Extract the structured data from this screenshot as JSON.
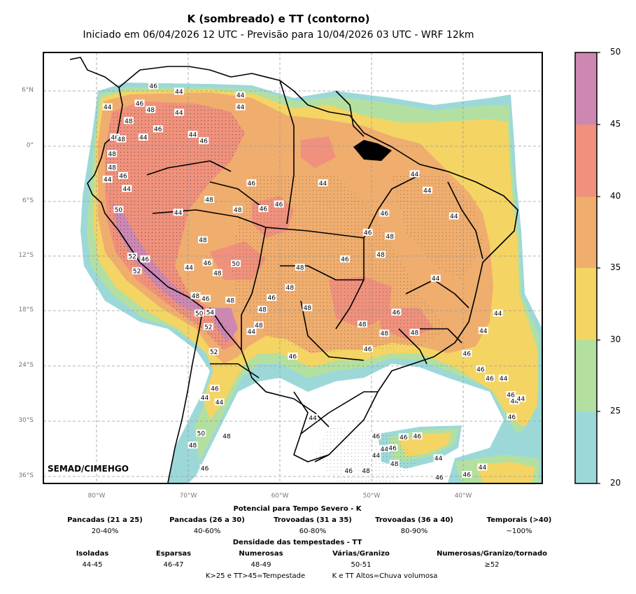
{
  "title": "K (sombreado) e TT (contorno)",
  "subtitle": "Iniciado em 06/04/2026 12 UTC - Previsão para 10/04/2026 03 UTC - WRF 12km",
  "credit": "SEMAD/CIMEHGO",
  "lat_labels": [
    "6°N",
    "0°",
    "6°S",
    "12°S",
    "18°S",
    "24°S",
    "30°S",
    "36°S"
  ],
  "lon_labels": [
    "80°W",
    "70°W",
    "60°W",
    "50°W",
    "40°W"
  ],
  "colorbar": {
    "ticks": [
      "50",
      "45",
      "40",
      "35",
      "30",
      "25",
      "20"
    ],
    "colors": [
      "#cd88b2",
      "#ef917c",
      "#efad6e",
      "#f4d463",
      "#b3e0a0",
      "#9dd8d8"
    ]
  },
  "legend": {
    "k_title": "Potencial para Tempo Severo - K",
    "k_items": [
      {
        "label": "Pancadas (21 a 25)",
        "value": "20-40%"
      },
      {
        "label": "Pancadas (26 a 30)",
        "value": "40-60%"
      },
      {
        "label": "Trovoadas (31 a 35)",
        "value": "60-80%"
      },
      {
        "label": "Trovoadas (36 a 40)",
        "value": "80-90%"
      },
      {
        "label": "Temporais (>40)",
        "value": "~100%"
      }
    ],
    "tt_title": "Densidade das tempestades - TT",
    "tt_items": [
      {
        "label": "Isoladas",
        "value": "44-45"
      },
      {
        "label": "Esparsas",
        "value": "46-47"
      },
      {
        "label": "Numerosas",
        "value": "48-49"
      },
      {
        "label": "Várias/Granizo",
        "value": "50-51"
      },
      {
        "label": "Numerosas/Granizo/tornado",
        "value": "≥52"
      }
    ],
    "footer_left": "K>25 e TT>45=Tempestade",
    "footer_right": "K e TT Altos=Chuva volumosa"
  },
  "contour_labels": [
    {
      "text": "46",
      "lon": -73.8,
      "lat": 6.6
    },
    {
      "text": "44",
      "lon": -71.0,
      "lat": 6.0
    },
    {
      "text": "44",
      "lon": -64.3,
      "lat": 5.6
    },
    {
      "text": "44",
      "lon": -78.8,
      "lat": 4.3
    },
    {
      "text": "46",
      "lon": -75.3,
      "lat": 4.7
    },
    {
      "text": "48",
      "lon": -74.1,
      "lat": 4.0
    },
    {
      "text": "44",
      "lon": -71.0,
      "lat": 3.7
    },
    {
      "text": "44",
      "lon": -64.3,
      "lat": 4.3
    },
    {
      "text": "48",
      "lon": -76.5,
      "lat": 2.8
    },
    {
      "text": "46",
      "lon": -73.3,
      "lat": 1.9
    },
    {
      "text": "46",
      "lon": -78.0,
      "lat": 1.0
    },
    {
      "text": "48",
      "lon": -77.3,
      "lat": 0.8
    },
    {
      "text": "44",
      "lon": -74.9,
      "lat": 1.0
    },
    {
      "text": "44",
      "lon": -69.5,
      "lat": 1.3
    },
    {
      "text": "46",
      "lon": -68.3,
      "lat": 0.6
    },
    {
      "text": "48",
      "lon": -78.3,
      "lat": -0.8
    },
    {
      "text": "48",
      "lon": -78.3,
      "lat": -2.3
    },
    {
      "text": "46",
      "lon": -77.1,
      "lat": -3.2
    },
    {
      "text": "44",
      "lon": -78.8,
      "lat": -3.6
    },
    {
      "text": "44",
      "lon": -76.7,
      "lat": -4.6
    },
    {
      "text": "46",
      "lon": -63.1,
      "lat": -4.0
    },
    {
      "text": "44",
      "lon": -55.3,
      "lat": -4.0
    },
    {
      "text": "44",
      "lon": -45.3,
      "lat": -3.0
    },
    {
      "text": "44",
      "lon": -43.9,
      "lat": -4.8
    },
    {
      "text": "48",
      "lon": -67.7,
      "lat": -5.8
    },
    {
      "text": "46",
      "lon": -60.1,
      "lat": -6.3
    },
    {
      "text": "50",
      "lon": -77.6,
      "lat": -6.9
    },
    {
      "text": "48",
      "lon": -64.6,
      "lat": -6.9
    },
    {
      "text": "46",
      "lon": -61.8,
      "lat": -6.8
    },
    {
      "text": "44",
      "lon": -71.1,
      "lat": -7.2
    },
    {
      "text": "46",
      "lon": -48.6,
      "lat": -7.3
    },
    {
      "text": "44",
      "lon": -41.0,
      "lat": -7.6
    },
    {
      "text": "46",
      "lon": -50.4,
      "lat": -9.4
    },
    {
      "text": "48",
      "lon": -48.0,
      "lat": -9.8
    },
    {
      "text": "48",
      "lon": -68.4,
      "lat": -10.2
    },
    {
      "text": "52",
      "lon": -76.1,
      "lat": -12.0
    },
    {
      "text": "46",
      "lon": -74.7,
      "lat": -12.3
    },
    {
      "text": "46",
      "lon": -67.9,
      "lat": -12.7
    },
    {
      "text": "50",
      "lon": -64.8,
      "lat": -12.8
    },
    {
      "text": "46",
      "lon": -52.9,
      "lat": -12.3
    },
    {
      "text": "48",
      "lon": -49.0,
      "lat": -11.8
    },
    {
      "text": "52",
      "lon": -75.6,
      "lat": -13.6
    },
    {
      "text": "44",
      "lon": -69.9,
      "lat": -13.2
    },
    {
      "text": "48",
      "lon": -66.8,
      "lat": -13.8
    },
    {
      "text": "48",
      "lon": -57.8,
      "lat": -13.2
    },
    {
      "text": "44",
      "lon": -43.0,
      "lat": -14.4
    },
    {
      "text": "48",
      "lon": -58.9,
      "lat": -15.4
    },
    {
      "text": "48",
      "lon": -69.2,
      "lat": -16.3
    },
    {
      "text": "46",
      "lon": -68.1,
      "lat": -16.6
    },
    {
      "text": "48",
      "lon": -65.4,
      "lat": -16.8
    },
    {
      "text": "46",
      "lon": -60.9,
      "lat": -16.5
    },
    {
      "text": "48",
      "lon": -57.0,
      "lat": -17.6
    },
    {
      "text": "48",
      "lon": -61.9,
      "lat": -17.8
    },
    {
      "text": "46",
      "lon": -47.3,
      "lat": -18.1
    },
    {
      "text": "44",
      "lon": -36.2,
      "lat": -18.2
    },
    {
      "text": "50",
      "lon": -68.8,
      "lat": -18.2
    },
    {
      "text": "54",
      "lon": -67.6,
      "lat": -18.1
    },
    {
      "text": "52",
      "lon": -67.8,
      "lat": -19.7
    },
    {
      "text": "48",
      "lon": -51.0,
      "lat": -19.4
    },
    {
      "text": "48",
      "lon": -62.3,
      "lat": -19.5
    },
    {
      "text": "44",
      "lon": -63.1,
      "lat": -20.2
    },
    {
      "text": "48",
      "lon": -48.6,
      "lat": -20.4
    },
    {
      "text": "48",
      "lon": -45.3,
      "lat": -20.3
    },
    {
      "text": "44",
      "lon": -37.8,
      "lat": -20.1
    },
    {
      "text": "46",
      "lon": -50.4,
      "lat": -22.1
    },
    {
      "text": "46",
      "lon": -39.6,
      "lat": -22.6
    },
    {
      "text": "52",
      "lon": -67.2,
      "lat": -22.4
    },
    {
      "text": "46",
      "lon": -58.6,
      "lat": -22.9
    },
    {
      "text": "46",
      "lon": -38.1,
      "lat": -24.3
    },
    {
      "text": "46",
      "lon": -37.1,
      "lat": -25.3
    },
    {
      "text": "44",
      "lon": -35.6,
      "lat": -25.3
    },
    {
      "text": "46",
      "lon": -67.1,
      "lat": -26.4
    },
    {
      "text": "44",
      "lon": -68.2,
      "lat": -27.4
    },
    {
      "text": "44",
      "lon": -66.6,
      "lat": -27.9
    },
    {
      "text": "46",
      "lon": -34.8,
      "lat": -27.1
    },
    {
      "text": "44",
      "lon": -34.4,
      "lat": -27.8
    },
    {
      "text": "44",
      "lon": -33.7,
      "lat": -27.5
    },
    {
      "text": "44",
      "lon": -56.4,
      "lat": -29.6
    },
    {
      "text": "46",
      "lon": -34.7,
      "lat": -29.5
    },
    {
      "text": "50",
      "lon": -68.6,
      "lat": -31.3
    },
    {
      "text": "48",
      "lon": -65.8,
      "lat": -31.6
    },
    {
      "text": "46",
      "lon": -49.5,
      "lat": -31.6
    },
    {
      "text": "46",
      "lon": -46.5,
      "lat": -31.7
    },
    {
      "text": "46",
      "lon": -45.0,
      "lat": -31.6
    },
    {
      "text": "48",
      "lon": -69.5,
      "lat": -32.6
    },
    {
      "text": "44",
      "lon": -48.6,
      "lat": -33.0
    },
    {
      "text": "46",
      "lon": -47.7,
      "lat": -32.9
    },
    {
      "text": "44",
      "lon": -49.5,
      "lat": -33.7
    },
    {
      "text": "48",
      "lon": -47.5,
      "lat": -34.6
    },
    {
      "text": "44",
      "lon": -42.7,
      "lat": -34.0
    },
    {
      "text": "46",
      "lon": -68.2,
      "lat": -35.1
    },
    {
      "text": "46",
      "lon": -52.5,
      "lat": -35.4
    },
    {
      "text": "48",
      "lon": -50.6,
      "lat": -35.4
    },
    {
      "text": "44",
      "lon": -37.9,
      "lat": -35.0
    },
    {
      "text": "46",
      "lon": -42.6,
      "lat": -36.1
    },
    {
      "text": "46",
      "lon": -39.6,
      "lat": -35.8
    }
  ]
}
